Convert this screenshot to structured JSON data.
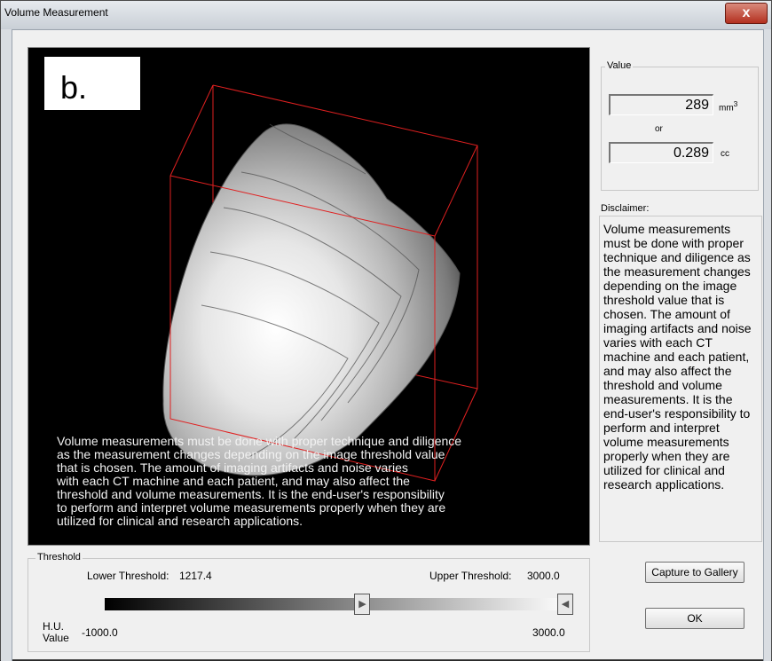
{
  "window": {
    "title": "Volume Measurement",
    "close_label": "x"
  },
  "viewport": {
    "panel_label": "b.",
    "overlay_lines": [
      "Volume measurements must be done with proper technique and diligence",
      "as the measurement changes depending on the image threshold value",
      "that is chosen. The amount of imaging artifacts and noise varies",
      "with each CT machine and each patient, and may also affect the",
      "threshold and volume measurements.  It is the end-user's responsibility",
      "to perform and  interpret volume measurements properly when they are",
      "utilized for clinical and research applications."
    ]
  },
  "value_group": {
    "label": "Value",
    "mm3_value": "289",
    "mm3_unit": "mm",
    "mm3_sup": "3",
    "or_label": "or",
    "cc_value": "0.289",
    "cc_unit": "cc"
  },
  "disclaimer": {
    "label": "Disclaimer:",
    "lines": [
      "Volume measurements",
      "must be done with proper",
      "technique and diligence as",
      "the measurement changes",
      "depending on the image",
      "threshold value that is",
      "chosen. The amount of",
      "imaging artifacts and noise",
      "varies with each CT",
      "machine and each patient,",
      "and may also affect the",
      "threshold and volume",
      "measurements.  It is the",
      "end-user's responsibility to",
      "perform and  interpret",
      "volume measurements",
      "properly when they are",
      "utilized for clinical and",
      "research applications."
    ]
  },
  "threshold": {
    "group_label": "Threshold",
    "lower_label": "Lower Threshold:",
    "lower_value": "1217.4",
    "upper_label": "Upper Threshold:",
    "upper_value": "3000.0",
    "hu_label": "H.U.",
    "hu_value_label": "Value",
    "min_value": "-1000.0",
    "max_value": "3000.0",
    "range_min": -1000,
    "range_max": 3000,
    "lower_icon": "right-pointing-triangle",
    "upper_icon": "left-pointing-triangle"
  },
  "buttons": {
    "capture_label": "Capture to Gallery",
    "ok_label": "OK"
  },
  "colors": {
    "bounding_box": "#ff2020",
    "viewport_bg": "#000000"
  }
}
